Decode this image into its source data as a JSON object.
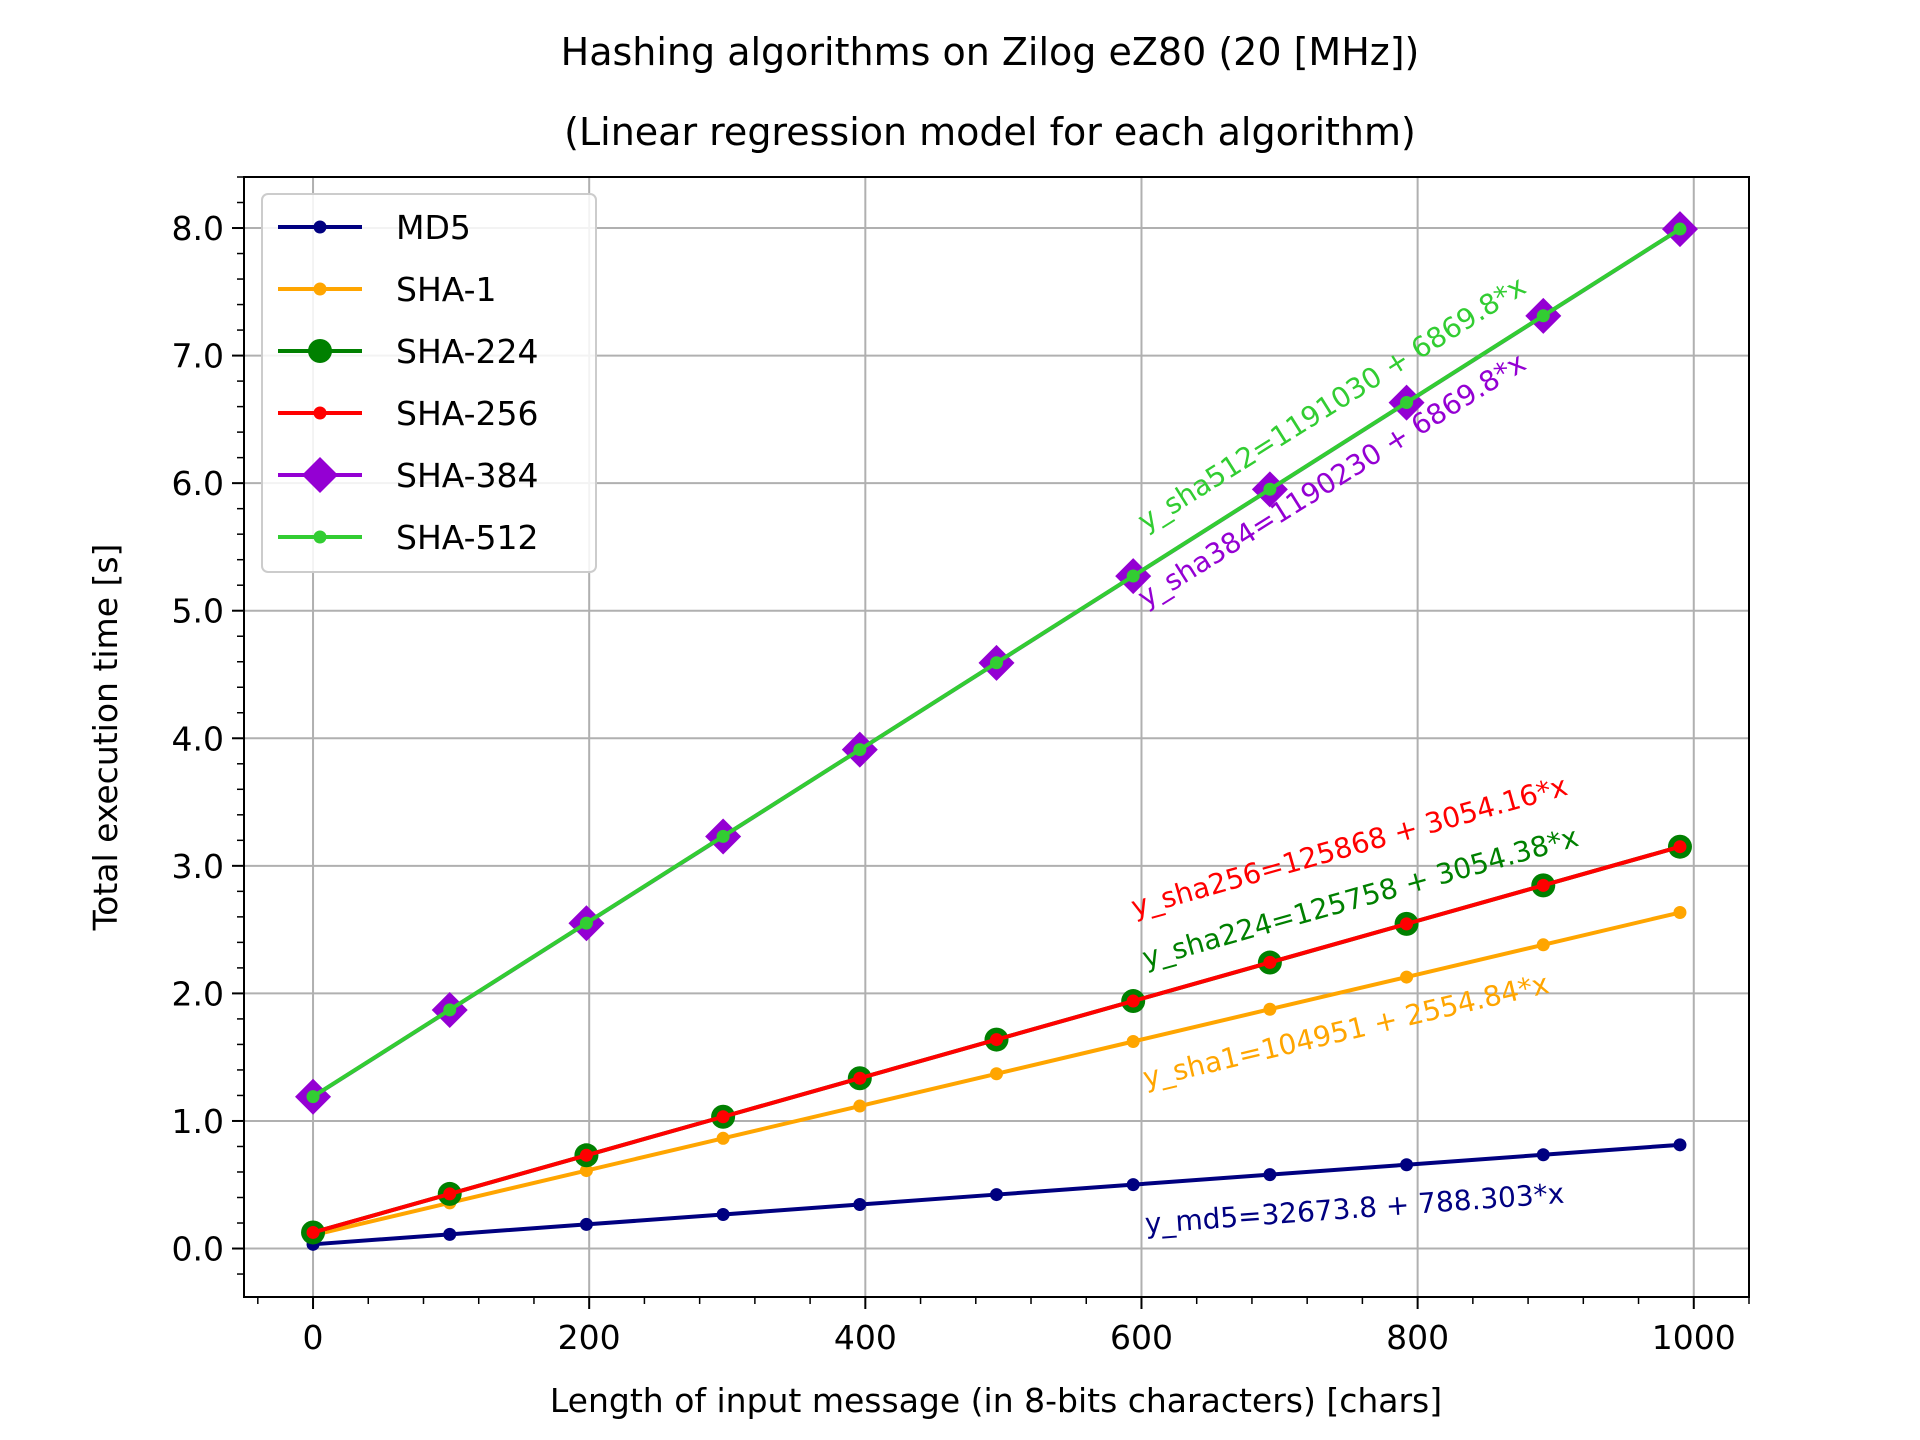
{
  "chart_data": {
    "type": "line",
    "title": "Hashing algorithms on Zilog eZ80 (20 [MHz])",
    "subtitle": "(Linear regression model for each algorithm)",
    "xlabel": "Length of input message (in 8-bits characters) [chars]",
    "ylabel": "Total execution time [s]",
    "xlim": [
      -50,
      1040
    ],
    "ylim": [
      -0.38,
      8.4
    ],
    "xticks": [
      0,
      200,
      400,
      600,
      800,
      1000
    ],
    "xtick_labels": [
      "0",
      "200",
      "400",
      "600",
      "800",
      "1000"
    ],
    "yticks": [
      0,
      1,
      2,
      3,
      4,
      5,
      6,
      7,
      8
    ],
    "ytick_labels": [
      "0.0",
      "1.0",
      "2.0",
      "3.0",
      "4.0",
      "5.0",
      "6.0",
      "7.0",
      "8.0"
    ],
    "grid": true,
    "legend_position": "top-left",
    "x": [
      0,
      99,
      198,
      297,
      396,
      495,
      594,
      693,
      792,
      891,
      990
    ],
    "series": [
      {
        "name": "MD5",
        "color": "#000080",
        "marker": "dot",
        "values": [
          0.033,
          0.111,
          0.189,
          0.267,
          0.345,
          0.423,
          0.501,
          0.579,
          0.657,
          0.735,
          0.813
        ]
      },
      {
        "name": "SHA-1",
        "color": "#ffa500",
        "marker": "dot",
        "values": [
          0.105,
          0.358,
          0.611,
          0.864,
          1.117,
          1.37,
          1.623,
          1.876,
          2.128,
          2.381,
          2.634
        ]
      },
      {
        "name": "SHA-224",
        "color": "#008000",
        "marker": "bigdot",
        "values": [
          0.126,
          0.428,
          0.731,
          1.033,
          1.335,
          1.638,
          1.94,
          2.242,
          2.545,
          2.847,
          3.15
        ]
      },
      {
        "name": "SHA-256",
        "color": "#ff0000",
        "marker": "dot",
        "values": [
          0.126,
          0.428,
          0.731,
          1.033,
          1.335,
          1.638,
          1.94,
          2.243,
          2.545,
          2.847,
          3.15
        ]
      },
      {
        "name": "SHA-384",
        "color": "#9400d3",
        "marker": "diamond",
        "values": [
          1.19,
          1.87,
          2.55,
          3.23,
          3.911,
          4.591,
          5.271,
          5.951,
          6.631,
          7.311,
          7.991
        ]
      },
      {
        "name": "SHA-512",
        "color": "#32cd32",
        "marker": "dot",
        "values": [
          1.191,
          1.871,
          2.551,
          3.231,
          3.911,
          4.592,
          5.272,
          5.952,
          6.632,
          7.312,
          7.992
        ]
      }
    ],
    "annotations": [
      {
        "text": "y_sha512=1191030 + 6869.8*x",
        "color": "#32cd32",
        "x": 603,
        "y": 5.62
      },
      {
        "text": "y_sha384=1190230 + 6869.8*x",
        "color": "#9400d3",
        "x": 603,
        "y": 5.02
      },
      {
        "text": "y_sha256=125868 + 3054.16*x",
        "color": "#ff0000",
        "x": 595,
        "y": 2.6
      },
      {
        "text": "y_sha224=125758 + 3054.38*x",
        "color": "#008000",
        "x": 603,
        "y": 2.2
      },
      {
        "text": "y_sha1=104951 + 2554.84*x",
        "color": "#ffa500",
        "x": 603,
        "y": 1.26
      },
      {
        "text": "y_md5=32673.8 + 788.303*x",
        "color": "#000080",
        "x": 603,
        "y": 0.12
      }
    ]
  }
}
